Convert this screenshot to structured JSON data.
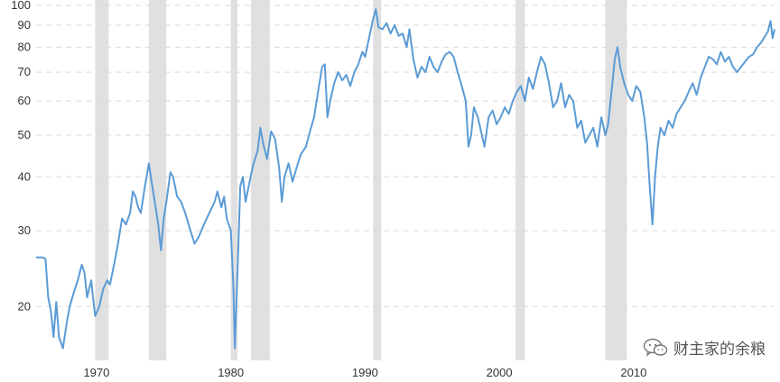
{
  "chart_data": {
    "type": "line",
    "title": "",
    "xlabel": "",
    "ylabel": "",
    "y_scale": "log",
    "ylim": [
      15,
      100
    ],
    "xlim": [
      1965.5,
      2020.5
    ],
    "grid": "horizontal dashed",
    "y_ticks": [
      20,
      30,
      40,
      50,
      60,
      70,
      80,
      90,
      100
    ],
    "x_ticks": [
      1970,
      1980,
      1990,
      2000,
      2010
    ],
    "series_color": "#5b9bd5",
    "recession_color": "#e0e0e0",
    "recessions": [
      [
        1969.9,
        1970.9
      ],
      [
        1973.9,
        1975.2
      ],
      [
        1980.0,
        1980.5
      ],
      [
        1981.5,
        1982.9
      ],
      [
        1990.6,
        1991.2
      ],
      [
        2001.2,
        2001.9
      ],
      [
        2007.9,
        2009.5
      ]
    ],
    "series": [
      {
        "values": [
          [
            1965.5,
            26
          ],
          [
            1966.0,
            26
          ],
          [
            1966.2,
            25.8
          ],
          [
            1966.4,
            21
          ],
          [
            1966.6,
            19.5
          ],
          [
            1966.8,
            17
          ],
          [
            1967.0,
            20.5
          ],
          [
            1967.2,
            17
          ],
          [
            1967.5,
            16
          ],
          [
            1967.8,
            18.5
          ],
          [
            1968.0,
            20
          ],
          [
            1968.3,
            21.5
          ],
          [
            1968.6,
            23
          ],
          [
            1968.9,
            25
          ],
          [
            1969.1,
            24
          ],
          [
            1969.3,
            21
          ],
          [
            1969.6,
            23
          ],
          [
            1969.9,
            19
          ],
          [
            1970.2,
            20
          ],
          [
            1970.5,
            22
          ],
          [
            1970.8,
            23
          ],
          [
            1971.0,
            22.5
          ],
          [
            1971.3,
            25
          ],
          [
            1971.6,
            28
          ],
          [
            1971.9,
            32
          ],
          [
            1972.2,
            31
          ],
          [
            1972.5,
            33
          ],
          [
            1972.7,
            37
          ],
          [
            1972.9,
            36
          ],
          [
            1973.1,
            34
          ],
          [
            1973.3,
            33
          ],
          [
            1973.6,
            38
          ],
          [
            1973.9,
            43
          ],
          [
            1974.1,
            39
          ],
          [
            1974.4,
            34
          ],
          [
            1974.6,
            31
          ],
          [
            1974.8,
            27
          ],
          [
            1975.0,
            32
          ],
          [
            1975.2,
            35
          ],
          [
            1975.5,
            41
          ],
          [
            1975.7,
            40
          ],
          [
            1976.0,
            36
          ],
          [
            1976.3,
            35
          ],
          [
            1976.6,
            33
          ],
          [
            1977.0,
            30
          ],
          [
            1977.3,
            28
          ],
          [
            1977.6,
            29
          ],
          [
            1978.0,
            31
          ],
          [
            1978.4,
            33
          ],
          [
            1978.8,
            35
          ],
          [
            1979.0,
            37
          ],
          [
            1979.3,
            34
          ],
          [
            1979.5,
            36
          ],
          [
            1979.7,
            32
          ],
          [
            1980.0,
            30
          ],
          [
            1980.2,
            22
          ],
          [
            1980.3,
            16
          ],
          [
            1980.5,
            24
          ],
          [
            1980.7,
            38
          ],
          [
            1980.9,
            40
          ],
          [
            1981.1,
            35
          ],
          [
            1981.4,
            39
          ],
          [
            1981.7,
            43
          ],
          [
            1982.0,
            46
          ],
          [
            1982.2,
            52
          ],
          [
            1982.4,
            48
          ],
          [
            1982.7,
            44
          ],
          [
            1983.0,
            51
          ],
          [
            1983.3,
            49
          ],
          [
            1983.6,
            42
          ],
          [
            1983.8,
            35
          ],
          [
            1984.0,
            40
          ],
          [
            1984.3,
            43
          ],
          [
            1984.6,
            39
          ],
          [
            1984.9,
            42
          ],
          [
            1985.2,
            45
          ],
          [
            1985.6,
            47
          ],
          [
            1985.9,
            51
          ],
          [
            1986.2,
            55
          ],
          [
            1986.5,
            63
          ],
          [
            1986.8,
            72
          ],
          [
            1987.0,
            73
          ],
          [
            1987.2,
            55
          ],
          [
            1987.4,
            60
          ],
          [
            1987.7,
            66
          ],
          [
            1988.0,
            70
          ],
          [
            1988.3,
            67
          ],
          [
            1988.6,
            69
          ],
          [
            1988.9,
            65
          ],
          [
            1989.2,
            70
          ],
          [
            1989.5,
            73
          ],
          [
            1989.8,
            78
          ],
          [
            1990.0,
            76
          ],
          [
            1990.3,
            84
          ],
          [
            1990.6,
            93
          ],
          [
            1990.8,
            98
          ],
          [
            1991.0,
            89
          ],
          [
            1991.3,
            88
          ],
          [
            1991.6,
            91
          ],
          [
            1991.9,
            86
          ],
          [
            1992.2,
            90
          ],
          [
            1992.5,
            85
          ],
          [
            1992.8,
            86
          ],
          [
            1993.1,
            80
          ],
          [
            1993.3,
            88
          ],
          [
            1993.6,
            75
          ],
          [
            1993.9,
            68
          ],
          [
            1994.2,
            72
          ],
          [
            1994.5,
            70
          ],
          [
            1994.8,
            76
          ],
          [
            1995.1,
            72
          ],
          [
            1995.4,
            70
          ],
          [
            1995.7,
            74
          ],
          [
            1996.0,
            77
          ],
          [
            1996.3,
            78
          ],
          [
            1996.6,
            76
          ],
          [
            1996.9,
            70
          ],
          [
            1997.2,
            65
          ],
          [
            1997.5,
            60
          ],
          [
            1997.7,
            47
          ],
          [
            1997.9,
            50
          ],
          [
            1998.1,
            58
          ],
          [
            1998.4,
            55
          ],
          [
            1998.7,
            50
          ],
          [
            1998.9,
            47
          ],
          [
            1999.2,
            55
          ],
          [
            1999.5,
            57
          ],
          [
            1999.8,
            53
          ],
          [
            2000.1,
            55
          ],
          [
            2000.4,
            58
          ],
          [
            2000.7,
            56
          ],
          [
            2001.0,
            60
          ],
          [
            2001.3,
            63
          ],
          [
            2001.6,
            65
          ],
          [
            2001.9,
            60
          ],
          [
            2002.2,
            68
          ],
          [
            2002.5,
            64
          ],
          [
            2002.8,
            70
          ],
          [
            2003.1,
            76
          ],
          [
            2003.4,
            73
          ],
          [
            2003.7,
            66
          ],
          [
            2004.0,
            58
          ],
          [
            2004.3,
            60
          ],
          [
            2004.6,
            66
          ],
          [
            2004.9,
            58
          ],
          [
            2005.2,
            62
          ],
          [
            2005.5,
            60
          ],
          [
            2005.8,
            52
          ],
          [
            2006.1,
            54
          ],
          [
            2006.4,
            48
          ],
          [
            2006.7,
            50
          ],
          [
            2007.0,
            52
          ],
          [
            2007.3,
            47
          ],
          [
            2007.6,
            55
          ],
          [
            2007.9,
            50
          ],
          [
            2008.1,
            53
          ],
          [
            2008.4,
            65
          ],
          [
            2008.6,
            75
          ],
          [
            2008.8,
            80
          ],
          [
            2009.0,
            72
          ],
          [
            2009.3,
            66
          ],
          [
            2009.6,
            62
          ],
          [
            2009.9,
            60
          ],
          [
            2010.2,
            65
          ],
          [
            2010.5,
            63
          ],
          [
            2010.8,
            55
          ],
          [
            2011.0,
            48
          ],
          [
            2011.2,
            38
          ],
          [
            2011.4,
            31
          ],
          [
            2011.6,
            40
          ],
          [
            2011.8,
            47
          ],
          [
            2012.0,
            52
          ],
          [
            2012.3,
            50
          ],
          [
            2012.6,
            54
          ],
          [
            2012.9,
            52
          ],
          [
            2013.2,
            56
          ],
          [
            2013.5,
            58
          ],
          [
            2013.8,
            60
          ],
          [
            2014.1,
            63
          ],
          [
            2014.4,
            66
          ],
          [
            2014.7,
            62
          ],
          [
            2015.0,
            68
          ],
          [
            2015.3,
            72
          ],
          [
            2015.6,
            76
          ],
          [
            2015.9,
            75
          ],
          [
            2016.2,
            73
          ],
          [
            2016.5,
            78
          ],
          [
            2016.8,
            74
          ],
          [
            2017.1,
            76
          ],
          [
            2017.4,
            72
          ],
          [
            2017.7,
            70
          ],
          [
            2018.0,
            72
          ],
          [
            2018.3,
            74
          ],
          [
            2018.6,
            76
          ],
          [
            2018.9,
            77
          ],
          [
            2019.2,
            80
          ],
          [
            2019.5,
            82
          ],
          [
            2019.8,
            85
          ],
          [
            2020.0,
            87
          ],
          [
            2020.2,
            92
          ],
          [
            2020.35,
            84
          ],
          [
            2020.5,
            88
          ]
        ]
      }
    ]
  },
  "watermark": {
    "text": "财主家的余粮",
    "icon": "wechat-icon"
  }
}
